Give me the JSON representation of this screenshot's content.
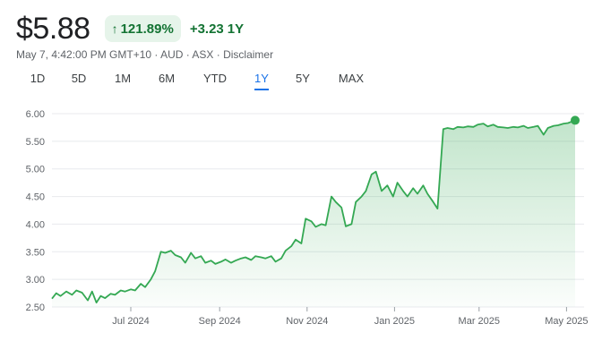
{
  "quote": {
    "price": "$5.88",
    "percent_change": "121.89%",
    "percent_direction_icon": "arrow-up-icon",
    "abs_change": "+3.23",
    "abs_period": "1Y",
    "meta_text": "May 7, 4:42:00 PM GMT+10 · AUD · ASX · Disclaimer"
  },
  "colors": {
    "positive": "#137333",
    "line": "#34a853",
    "badge_bg": "#e6f4ea",
    "active_tab": "#1a73e8"
  },
  "range_tabs": [
    {
      "label": "1D",
      "active": false
    },
    {
      "label": "5D",
      "active": false
    },
    {
      "label": "1M",
      "active": false
    },
    {
      "label": "6M",
      "active": false
    },
    {
      "label": "YTD",
      "active": false
    },
    {
      "label": "1Y",
      "active": true
    },
    {
      "label": "5Y",
      "active": false
    },
    {
      "label": "MAX",
      "active": false
    }
  ],
  "chart_data": {
    "type": "area",
    "title": "",
    "xlabel": "",
    "ylabel": "",
    "ylim": [
      2.5,
      6.0
    ],
    "yticks": [
      2.5,
      3.0,
      3.5,
      4.0,
      4.5,
      5.0,
      5.5,
      6.0
    ],
    "ytick_labels": [
      "2.50",
      "3.00",
      "3.50",
      "4.00",
      "4.50",
      "5.00",
      "5.50",
      "6.00"
    ],
    "xlim": [
      "2024-05-07",
      "2025-05-07"
    ],
    "xticks": [
      {
        "date": "2024-07-01",
        "label": "Jul 2024"
      },
      {
        "date": "2024-09-01",
        "label": "Sep 2024"
      },
      {
        "date": "2024-11-01",
        "label": "Nov 2024"
      },
      {
        "date": "2025-01-01",
        "label": "Jan 2025"
      },
      {
        "date": "2025-03-01",
        "label": "Mar 2025"
      },
      {
        "date": "2025-05-01",
        "label": "May 2025"
      }
    ],
    "grid": true,
    "series": [
      {
        "name": "",
        "x": [
          "2024-05-07",
          "2024-05-10",
          "2024-05-13",
          "2024-05-17",
          "2024-05-21",
          "2024-05-24",
          "2024-05-28",
          "2024-06-01",
          "2024-06-04",
          "2024-06-07",
          "2024-06-10",
          "2024-06-13",
          "2024-06-17",
          "2024-06-20",
          "2024-06-24",
          "2024-06-27",
          "2024-07-01",
          "2024-07-04",
          "2024-07-08",
          "2024-07-11",
          "2024-07-15",
          "2024-07-18",
          "2024-07-22",
          "2024-07-25",
          "2024-07-29",
          "2024-08-01",
          "2024-08-05",
          "2024-08-08",
          "2024-08-12",
          "2024-08-15",
          "2024-08-19",
          "2024-08-22",
          "2024-08-26",
          "2024-08-29",
          "2024-09-02",
          "2024-09-05",
          "2024-09-09",
          "2024-09-12",
          "2024-09-16",
          "2024-09-19",
          "2024-09-23",
          "2024-09-26",
          "2024-09-30",
          "2024-10-03",
          "2024-10-07",
          "2024-10-10",
          "2024-10-14",
          "2024-10-17",
          "2024-10-21",
          "2024-10-24",
          "2024-10-28",
          "2024-10-31",
          "2024-11-04",
          "2024-11-07",
          "2024-11-11",
          "2024-11-14",
          "2024-11-18",
          "2024-11-21",
          "2024-11-25",
          "2024-11-28",
          "2024-12-02",
          "2024-12-05",
          "2024-12-09",
          "2024-12-12",
          "2024-12-16",
          "2024-12-19",
          "2024-12-23",
          "2024-12-27",
          "2024-12-31",
          "2025-01-03",
          "2025-01-07",
          "2025-01-10",
          "2025-01-14",
          "2025-01-17",
          "2025-01-21",
          "2025-01-24",
          "2025-01-28",
          "2025-01-31",
          "2025-02-04",
          "2025-02-07",
          "2025-02-11",
          "2025-02-14",
          "2025-02-18",
          "2025-02-21",
          "2025-02-25",
          "2025-02-28",
          "2025-03-04",
          "2025-03-07",
          "2025-03-11",
          "2025-03-14",
          "2025-03-18",
          "2025-03-21",
          "2025-03-25",
          "2025-03-28",
          "2025-04-01",
          "2025-04-04",
          "2025-04-08",
          "2025-04-11",
          "2025-04-15",
          "2025-04-18",
          "2025-04-22",
          "2025-04-25",
          "2025-04-29",
          "2025-05-02",
          "2025-05-07"
        ],
        "y": [
          2.65,
          2.75,
          2.7,
          2.78,
          2.72,
          2.8,
          2.76,
          2.62,
          2.78,
          2.58,
          2.7,
          2.66,
          2.74,
          2.72,
          2.8,
          2.78,
          2.82,
          2.8,
          2.92,
          2.86,
          3.0,
          3.15,
          3.5,
          3.48,
          3.52,
          3.44,
          3.4,
          3.3,
          3.48,
          3.38,
          3.42,
          3.3,
          3.34,
          3.28,
          3.32,
          3.36,
          3.3,
          3.34,
          3.38,
          3.4,
          3.35,
          3.42,
          3.4,
          3.38,
          3.42,
          3.32,
          3.38,
          3.52,
          3.6,
          3.72,
          3.65,
          4.1,
          4.05,
          3.95,
          4.0,
          3.98,
          4.5,
          4.4,
          4.3,
          3.96,
          4.0,
          4.4,
          4.5,
          4.6,
          4.9,
          4.95,
          4.6,
          4.7,
          4.5,
          4.75,
          4.6,
          4.5,
          4.65,
          4.55,
          4.7,
          4.55,
          4.4,
          4.28,
          5.72,
          5.74,
          5.72,
          5.76,
          5.75,
          5.77,
          5.76,
          5.8,
          5.82,
          5.77,
          5.8,
          5.76,
          5.75,
          5.74,
          5.76,
          5.75,
          5.78,
          5.74,
          5.76,
          5.78,
          5.62,
          5.74,
          5.78,
          5.79,
          5.82,
          5.83,
          5.88
        ]
      }
    ]
  }
}
